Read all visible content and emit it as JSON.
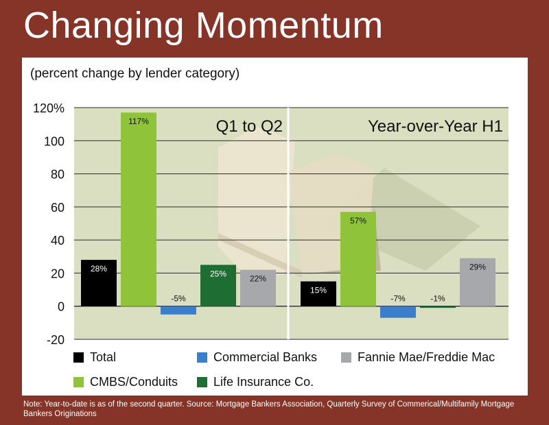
{
  "title": "Changing Momentum",
  "subtitle": "(percent change by lender category)",
  "note": "Note: Year-to-date is as of the second quarter. Source: Mortgage Bankers Association, Quarterly Survey of Commerical/Multifamily Mortgage Bankers Originations",
  "chart_data": {
    "type": "bar",
    "ylim": [
      -20,
      120
    ],
    "yticks": [
      {
        "value": 120,
        "label": "120%"
      },
      {
        "value": 100,
        "label": "100"
      },
      {
        "value": 80,
        "label": "80"
      },
      {
        "value": 60,
        "label": "60"
      },
      {
        "value": 40,
        "label": "40"
      },
      {
        "value": 20,
        "label": "20"
      },
      {
        "value": 0,
        "label": "0"
      },
      {
        "value": -20,
        "label": "-20"
      }
    ],
    "grid": true,
    "legend_position": "bottom",
    "panels": [
      {
        "title": "Q1 to Q2",
        "values": [
          28,
          117,
          -5,
          25,
          22
        ],
        "labels": [
          "28%",
          "117%",
          "-5%",
          "25%",
          "22%"
        ]
      },
      {
        "title": "Year-over-Year H1",
        "values": [
          15,
          57,
          -7,
          -1,
          29
        ],
        "labels": [
          "15%",
          "57%",
          "-7%",
          "-1%",
          "29%"
        ]
      }
    ],
    "series": [
      {
        "name": "Total",
        "color": "#000000"
      },
      {
        "name": "CMBS/Conduits",
        "color": "#8fc43a"
      },
      {
        "name": "Commercial Banks",
        "color": "#3b7fcc"
      },
      {
        "name": "Life Insurance Co.",
        "color": "#1e6e34"
      },
      {
        "name": "Fannie Mae/Freddie Mac",
        "color": "#a6a8ab"
      }
    ]
  }
}
